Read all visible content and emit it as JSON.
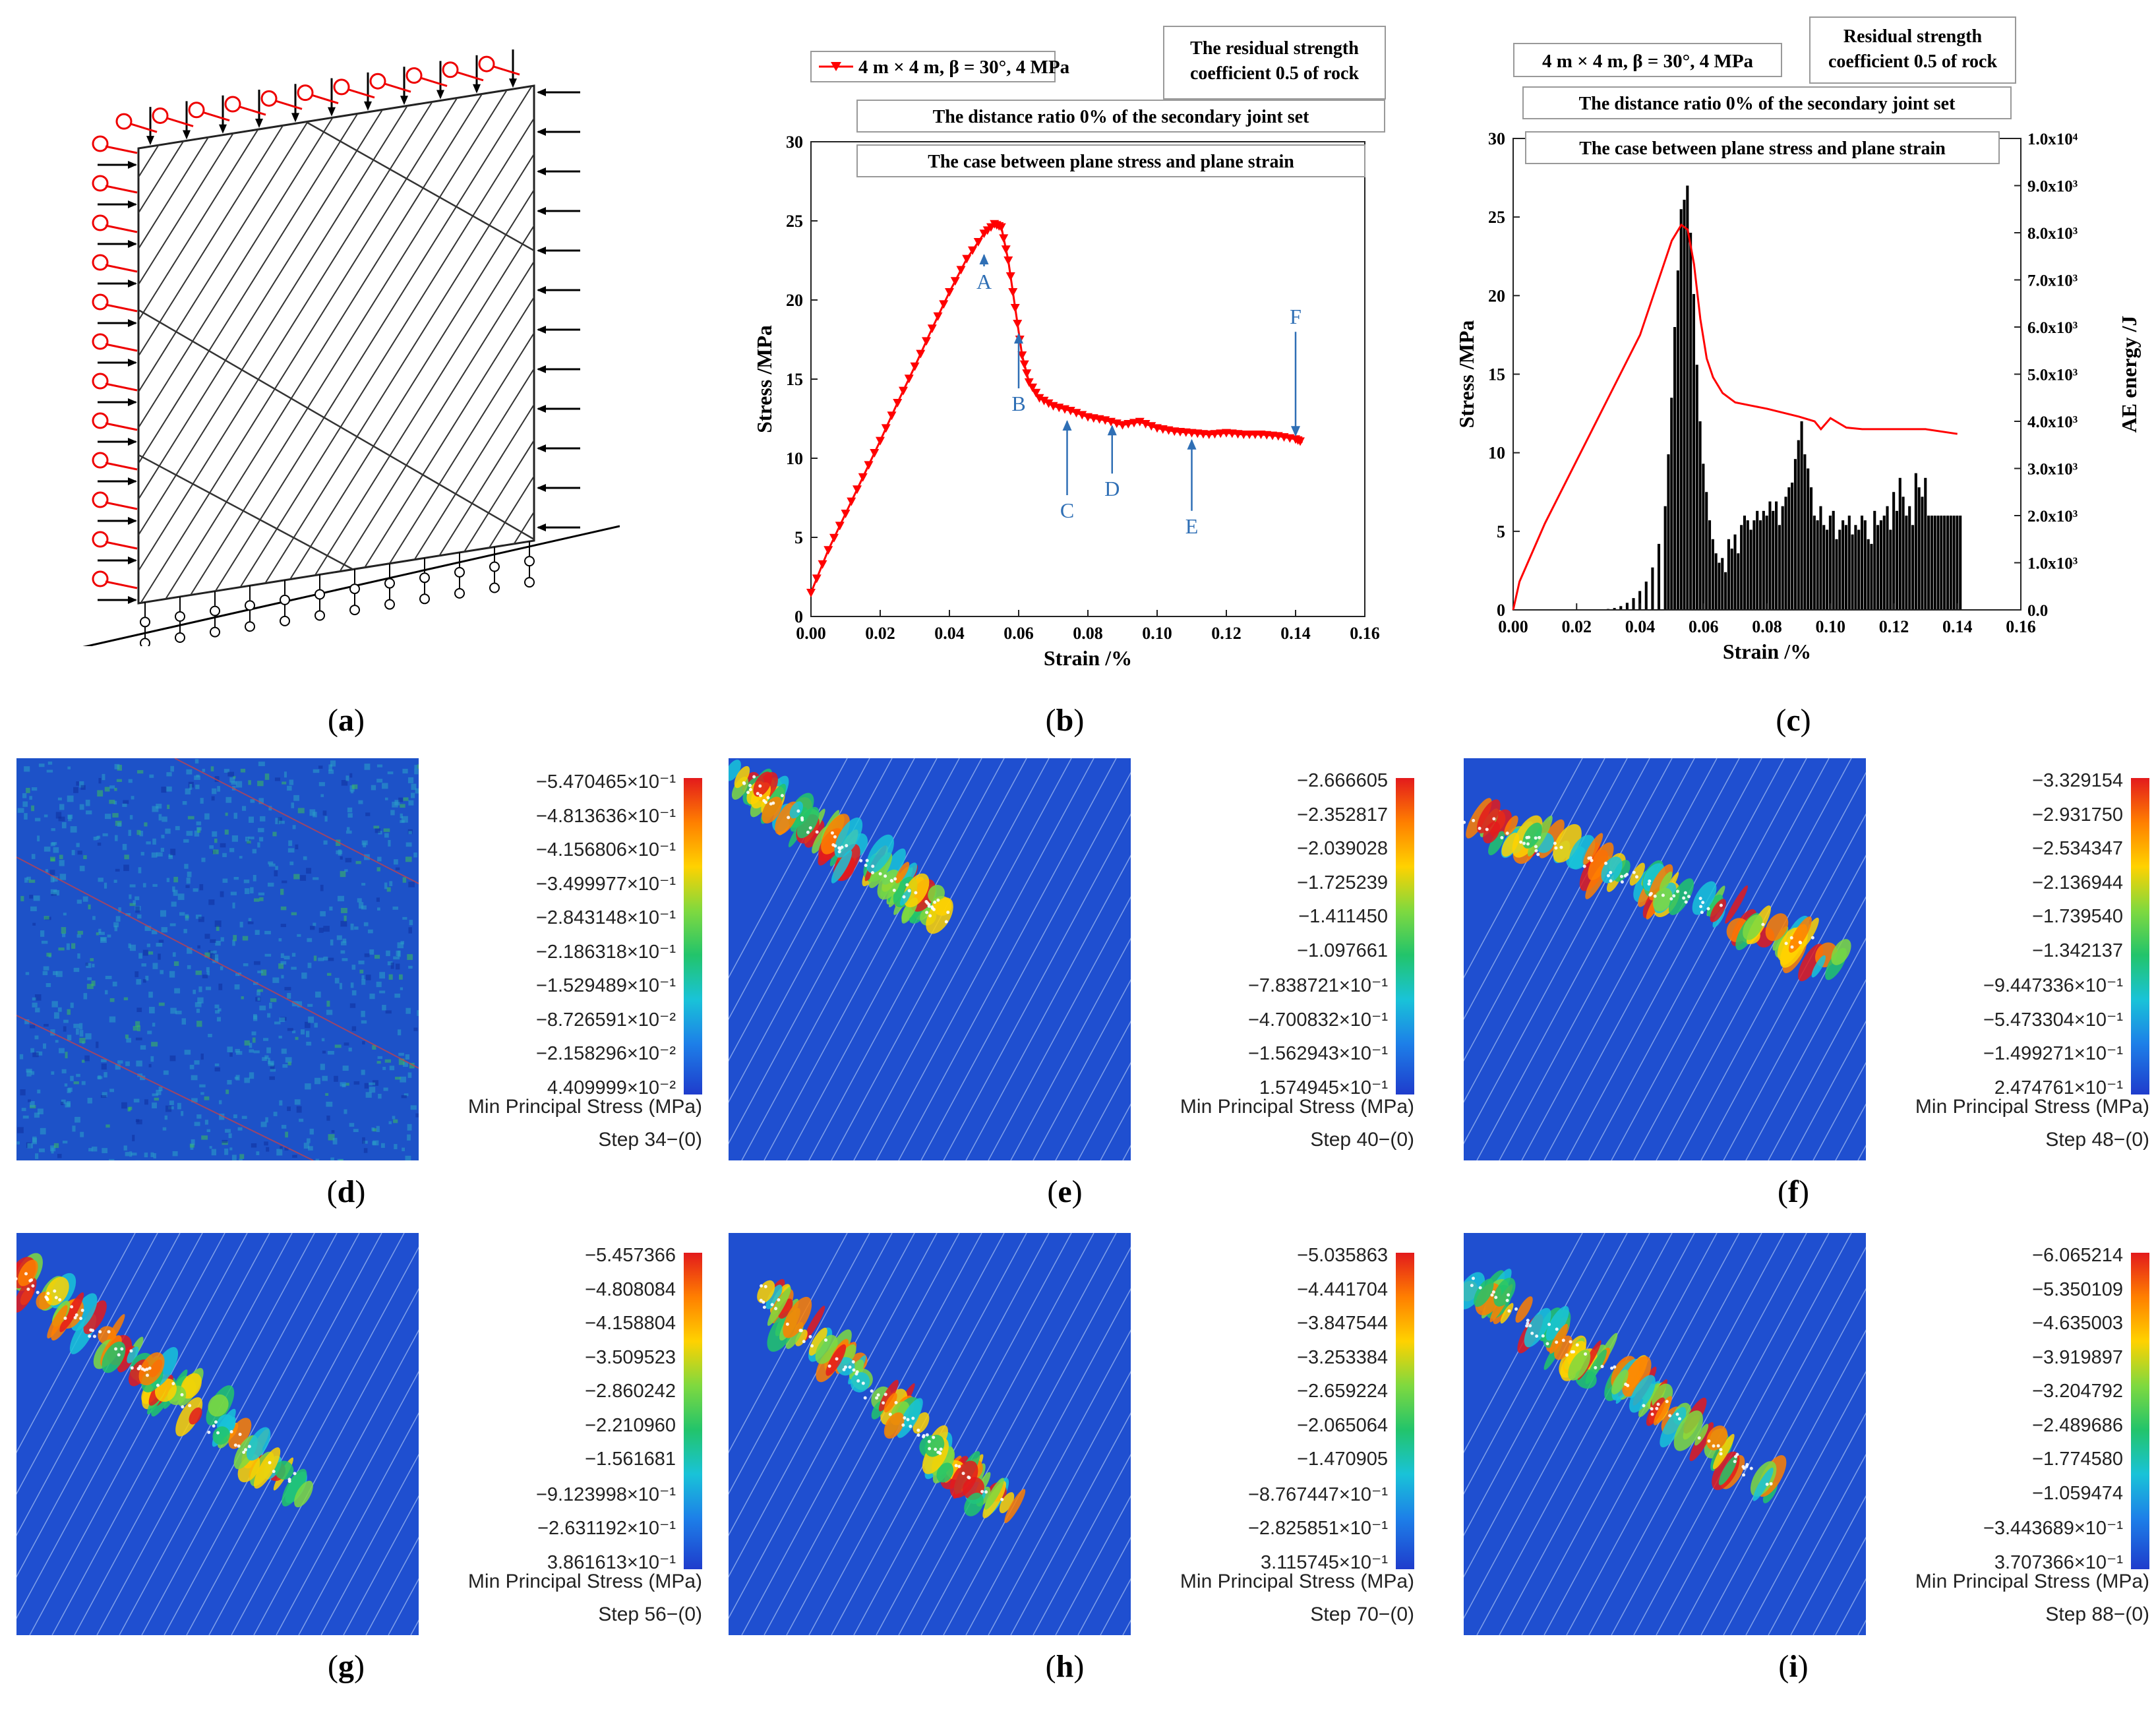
{
  "labels": {
    "a": "a",
    "b": "b",
    "c": "c",
    "d": "d",
    "e": "e",
    "f": "f",
    "g": "g",
    "h": "h",
    "i": "i"
  },
  "panel_b": {
    "legend": "4 m × 4 m,  β = 30°,  4 MPa",
    "box_residual_1": "The residual strength",
    "box_residual_2": "coefficient 0.5 of rock",
    "box_ratio": "The distance ratio  0%  of the secondary joint set",
    "box_case": "The case between plane stress and plane strain",
    "markers": [
      "A",
      "B",
      "C",
      "D",
      "E",
      "F"
    ]
  },
  "panel_c": {
    "legend": "4 m × 4 m,  β = 30°,  4 MPa",
    "box_residual_1": "Residual strength",
    "box_residual_2": "coefficient 0.5 of rock",
    "box_ratio": "The distance ratio  0%  of the secondary joint set",
    "box_case": "The case between plane stress and plane strain"
  },
  "chart_data": [
    {
      "type": "line",
      "title": "",
      "xlabel": "Strain /%",
      "ylabel": "Stress /MPa",
      "xlim": [
        0,
        0.16
      ],
      "ylim": [
        0,
        30
      ],
      "xticks": [
        "0.00",
        "0.02",
        "0.04",
        "0.06",
        "0.08",
        "0.10",
        "0.12",
        "0.14",
        "0.16"
      ],
      "yticks": [
        "0",
        "5",
        "10",
        "15",
        "20",
        "25",
        "30"
      ],
      "series": [
        {
          "name": "4 m × 4 m, β = 30°, 4 MPa",
          "color": "#ff0000",
          "x": [
            0,
            0.005,
            0.01,
            0.015,
            0.02,
            0.025,
            0.03,
            0.035,
            0.04,
            0.045,
            0.05,
            0.053,
            0.055,
            0.057,
            0.059,
            0.061,
            0.063,
            0.066,
            0.07,
            0.075,
            0.08,
            0.085,
            0.09,
            0.095,
            0.1,
            0.105,
            0.11,
            0.115,
            0.12,
            0.125,
            0.13,
            0.135,
            0.14,
            0.142
          ],
          "y": [
            1.5,
            4.2,
            6.5,
            8.8,
            11.1,
            13.5,
            15.8,
            18.2,
            20.5,
            22.6,
            24.2,
            24.8,
            24.6,
            22.5,
            19.5,
            16.5,
            14.8,
            13.8,
            13.3,
            13.0,
            12.6,
            12.4,
            12.1,
            12.3,
            11.9,
            11.7,
            11.6,
            11.5,
            11.6,
            11.5,
            11.5,
            11.4,
            11.2,
            11.0
          ]
        }
      ],
      "annotations": [
        {
          "label": "A",
          "x": 0.05,
          "y": 23.0
        },
        {
          "label": "B",
          "x": 0.06,
          "y": 18.0
        },
        {
          "label": "C",
          "x": 0.074,
          "y": 12.5
        },
        {
          "label": "D",
          "x": 0.087,
          "y": 12.2
        },
        {
          "label": "E",
          "x": 0.11,
          "y": 11.3
        },
        {
          "label": "F",
          "x": 0.14,
          "y": 11.2
        }
      ]
    },
    {
      "type": "bar",
      "title": "",
      "xlabel": "Strain /%",
      "ylabel": "Stress /MPa",
      "y2label": "AE energy /J",
      "xlim": [
        0,
        0.16
      ],
      "ylim": [
        0,
        30
      ],
      "y2lim": [
        0,
        10000
      ],
      "xticks": [
        "0.00",
        "0.02",
        "0.04",
        "0.06",
        "0.08",
        "0.10",
        "0.12",
        "0.14",
        "0.16"
      ],
      "yticks": [
        "0",
        "5",
        "10",
        "15",
        "20",
        "25",
        "30"
      ],
      "y2ticks": [
        "0.0",
        "1.0x10³",
        "2.0x10³",
        "3.0x10³",
        "4.0x10³",
        "5.0x10³",
        "6.0x10³",
        "7.0x10³",
        "8.0x10³",
        "9.0x10³",
        "1.0x10⁴"
      ],
      "line": {
        "name": "Stress",
        "color": "#ff0000",
        "x": [
          0,
          0.002,
          0.01,
          0.02,
          0.03,
          0.04,
          0.05,
          0.053,
          0.055,
          0.057,
          0.059,
          0.061,
          0.063,
          0.066,
          0.07,
          0.075,
          0.08,
          0.09,
          0.095,
          0.097,
          0.1,
          0.105,
          0.11,
          0.12,
          0.13,
          0.14
        ],
        "y": [
          0,
          1.8,
          5.5,
          9.5,
          13.5,
          17.5,
          23.5,
          24.5,
          24.2,
          22.0,
          18.5,
          16.0,
          14.8,
          13.8,
          13.2,
          13.0,
          12.8,
          12.3,
          12.0,
          11.5,
          12.2,
          11.6,
          11.5,
          11.5,
          11.5,
          11.2
        ]
      },
      "bars": {
        "name": "AE energy",
        "color": "#000000",
        "x": [
          0.03,
          0.032,
          0.034,
          0.036,
          0.038,
          0.04,
          0.042,
          0.044,
          0.046,
          0.048,
          0.049,
          0.05,
          0.051,
          0.052,
          0.053,
          0.054,
          0.055,
          0.056,
          0.057,
          0.058,
          0.059,
          0.06,
          0.061,
          0.062,
          0.063,
          0.064,
          0.065,
          0.066,
          0.067,
          0.068,
          0.069,
          0.07,
          0.071,
          0.072,
          0.073,
          0.074,
          0.075,
          0.076,
          0.077,
          0.078,
          0.079,
          0.08,
          0.081,
          0.082,
          0.083,
          0.084,
          0.085,
          0.086,
          0.087,
          0.088,
          0.089,
          0.09,
          0.091,
          0.092,
          0.093,
          0.094,
          0.095,
          0.096,
          0.097,
          0.098,
          0.099,
          0.1,
          0.101,
          0.102,
          0.103,
          0.104,
          0.105,
          0.106,
          0.107,
          0.108,
          0.109,
          0.11,
          0.111,
          0.112,
          0.113,
          0.114,
          0.115,
          0.116,
          0.117,
          0.118,
          0.119,
          0.12,
          0.121,
          0.122,
          0.123,
          0.124,
          0.125,
          0.126,
          0.127,
          0.128,
          0.129,
          0.13,
          0.131,
          0.132,
          0.133,
          0.134,
          0.135,
          0.136,
          0.137,
          0.138,
          0.139,
          0.14,
          0.141
        ],
        "values": [
          20,
          40,
          80,
          150,
          250,
          400,
          600,
          900,
          1400,
          2200,
          3300,
          4500,
          6000,
          7200,
          8500,
          8700,
          9000,
          8000,
          6700,
          5200,
          4000,
          3100,
          2500,
          1900,
          1500,
          1200,
          1000,
          1100,
          800,
          1500,
          1300,
          1600,
          1200,
          1800,
          2000,
          1900,
          1700,
          1900,
          2100,
          1900,
          2100,
          2000,
          2300,
          2100,
          2300,
          1800,
          2200,
          2400,
          2600,
          2700,
          3200,
          3600,
          4000,
          3300,
          3000,
          2600,
          2000,
          1900,
          2200,
          1800,
          1700,
          2000,
          2100,
          1500,
          1700,
          1900,
          1800,
          2000,
          1600,
          1800,
          1700,
          2000,
          1900,
          1500,
          1400,
          2100,
          1800,
          1900,
          2000,
          2200,
          1700,
          2500,
          2100,
          2800,
          2400,
          2000,
          2200,
          1800,
          2900,
          2600,
          2400,
          2800,
          2000,
          2000,
          2000,
          2000,
          2000,
          2000,
          2000,
          2000,
          2000,
          2000,
          2000
        ]
      }
    }
  ],
  "contours": [
    {
      "id": "d",
      "ticks": [
        "−5.470465×10⁻¹",
        "−4.813636×10⁻¹",
        "−4.156806×10⁻¹",
        "−3.499977×10⁻¹",
        "−2.843148×10⁻¹",
        "−2.186318×10⁻¹",
        "−1.529489×10⁻¹",
        "−8.726591×10⁻²",
        "−2.158296×10⁻²",
        "4.409999×10⁻²"
      ],
      "title": "Min Principal Stress (MPa)",
      "step": "Step 34−(0)"
    },
    {
      "id": "e",
      "ticks": [
        "−2.666605",
        "−2.352817",
        "−2.039028",
        "−1.725239",
        "−1.411450",
        "−1.097661",
        "−7.838721×10⁻¹",
        "−4.700832×10⁻¹",
        "−1.562943×10⁻¹",
        "1.574945×10⁻¹"
      ],
      "title": "Min Principal Stress (MPa)",
      "step": "Step 40−(0)"
    },
    {
      "id": "f",
      "ticks": [
        "−3.329154",
        "−2.931750",
        "−2.534347",
        "−2.136944",
        "−1.739540",
        "−1.342137",
        "−9.447336×10⁻¹",
        "−5.473304×10⁻¹",
        "−1.499271×10⁻¹",
        "2.474761×10⁻¹"
      ],
      "title": "Min Principal Stress (MPa)",
      "step": "Step 48−(0)"
    },
    {
      "id": "g",
      "ticks": [
        "−5.457366",
        "−4.808084",
        "−4.158804",
        "−3.509523",
        "−2.860242",
        "−2.210960",
        "−1.561681",
        "−9.123998×10⁻¹",
        "−2.631192×10⁻¹",
        "3.861613×10⁻¹"
      ],
      "title": "Min Principal Stress (MPa)",
      "step": "Step 56−(0)"
    },
    {
      "id": "h",
      "ticks": [
        "−5.035863",
        "−4.441704",
        "−3.847544",
        "−3.253384",
        "−2.659224",
        "−2.065064",
        "−1.470905",
        "−8.767447×10⁻¹",
        "−2.825851×10⁻¹",
        "3.115745×10⁻¹"
      ],
      "title": "Min Principal Stress (MPa)",
      "step": "Step 70−(0)"
    },
    {
      "id": "i",
      "ticks": [
        "−6.065214",
        "−5.350109",
        "−4.635003",
        "−3.919897",
        "−3.204792",
        "−2.489686",
        "−1.774580",
        "−1.059474",
        "−3.443689×10⁻¹",
        "3.707366×10⁻¹"
      ],
      "title": "Min Principal Stress (MPa)",
      "step": "Step 88−(0)"
    }
  ]
}
